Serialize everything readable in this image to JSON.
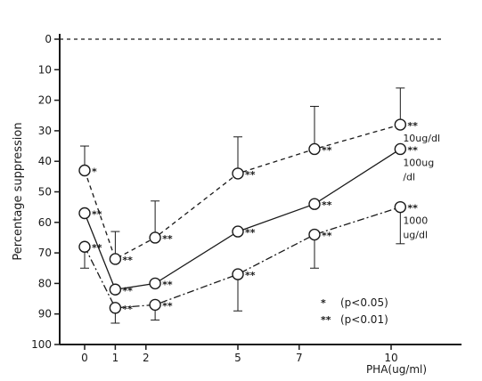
{
  "chart_data": {
    "type": "line",
    "title": "",
    "xlabel": "PHA(ug/ml)",
    "ylabel": "Percentage suppression",
    "x_ticks": [
      0,
      1,
      2,
      5,
      7,
      10
    ],
    "x_tick_labels": [
      "0",
      "1",
      "2",
      "5",
      "7",
      "10"
    ],
    "y_ticks": [
      0,
      10,
      20,
      30,
      40,
      50,
      60,
      70,
      80,
      90,
      100
    ],
    "y_tick_labels": [
      "0",
      "10",
      "20",
      "30",
      "40",
      "50",
      "60",
      "70",
      "80",
      "90",
      "100"
    ],
    "y_inverted": true,
    "xlim": [
      -0.9,
      12.6
    ],
    "ylim": [
      0,
      100
    ],
    "grid": false,
    "reference_line": {
      "y": 0,
      "style": "dashed"
    },
    "series": [
      {
        "name": "10ug/dl",
        "line_style": "dashed",
        "x": [
          0,
          1,
          2.3,
          5,
          7.5,
          10.3
        ],
        "y": [
          43,
          72,
          65,
          44,
          36,
          28
        ],
        "error_up": [
          8,
          9,
          12,
          12,
          14,
          12
        ],
        "significance": [
          "*",
          "**",
          "**",
          "**",
          "**",
          "**"
        ]
      },
      {
        "name": "100ug/dl",
        "line_style": "solid",
        "x": [
          0,
          1,
          2.3,
          5,
          7.5,
          10.3
        ],
        "y": [
          57,
          82,
          80,
          63,
          54,
          36
        ],
        "error_up": [
          0,
          0,
          0,
          0,
          0,
          0
        ],
        "significance": [
          "**",
          "**",
          "**",
          "**",
          "**",
          "**"
        ]
      },
      {
        "name": "1000ug/dl",
        "line_style": "dashdot",
        "x": [
          0,
          1,
          2.3,
          5,
          7.5,
          10.3
        ],
        "y": [
          68,
          88,
          87,
          77,
          64,
          55
        ],
        "error_down": [
          7,
          5,
          5,
          12,
          11,
          12
        ],
        "significance": [
          "**",
          "**",
          "**",
          "**",
          "**",
          "**"
        ]
      }
    ],
    "series_labels": [
      {
        "lines": [
          "10ug/dl"
        ]
      },
      {
        "lines": [
          "100ug",
          "/dl"
        ]
      },
      {
        "lines": [
          "1000",
          "ug/dl"
        ]
      }
    ],
    "legend": {
      "placement": "bottom-right",
      "entries": [
        {
          "marker": "*",
          "text": "(p<0.05)"
        },
        {
          "marker": "**",
          "text": "(p<0.01)"
        }
      ]
    }
  }
}
